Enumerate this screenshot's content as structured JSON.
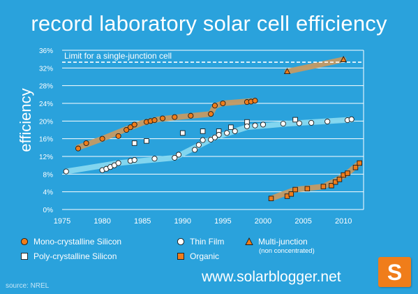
{
  "title": "record laboratory solar cell efficiency",
  "site": "www.solarblogger.net",
  "source": "source: NREL",
  "logo_letter": "S",
  "chart_data": {
    "type": "scatter",
    "ylabel": "efficiency",
    "xlabel": "",
    "xlim": [
      1975,
      2012.5
    ],
    "ylim": [
      0,
      36
    ],
    "x_ticks": [
      1975,
      1980,
      1985,
      1990,
      1995,
      2000,
      2005,
      2010
    ],
    "y_ticks": [
      0,
      4,
      8,
      12,
      16,
      20,
      24,
      28,
      32,
      36
    ],
    "y_tick_suffix": "%",
    "grid": true,
    "legend_placement": "bottom",
    "limit_line": {
      "value": 33.3,
      "label": "Limit for a single-junction cell"
    },
    "series": [
      {
        "name": "Mono-crystalline Silicon",
        "marker": "circle",
        "color": "#f07d1a",
        "band_color": "#c49a63",
        "points": [
          [
            1977,
            13.8
          ],
          [
            1978,
            15
          ],
          [
            1980,
            16
          ],
          [
            1982,
            16.6
          ],
          [
            1983,
            18
          ],
          [
            1983.5,
            18.6
          ],
          [
            1984,
            19.2
          ],
          [
            1985.5,
            19.8
          ],
          [
            1986,
            20
          ],
          [
            1986.5,
            20.2
          ],
          [
            1987.5,
            20.6
          ],
          [
            1989,
            20.9
          ],
          [
            1991,
            21.2
          ],
          [
            1993.5,
            21.6
          ],
          [
            1994,
            23.5
          ],
          [
            1995,
            24
          ],
          [
            1998,
            24.3
          ],
          [
            1998.5,
            24.4
          ],
          [
            1999,
            24.6
          ]
        ],
        "band": [
          [
            1977,
            14
          ],
          [
            1980,
            16
          ],
          [
            1983,
            18.2
          ],
          [
            1985,
            19.6
          ],
          [
            1987,
            20.4
          ],
          [
            1990,
            21
          ],
          [
            1993.5,
            21.6
          ],
          [
            1994,
            23.4
          ],
          [
            1995,
            24
          ],
          [
            1999,
            24.6
          ]
        ]
      },
      {
        "name": "Poly-crystalline Silicon",
        "marker": "square",
        "color": "#ffffff",
        "points": [
          [
            1984,
            15
          ],
          [
            1985.5,
            15.5
          ],
          [
            1990,
            17.3
          ],
          [
            1992.5,
            17.7
          ],
          [
            1994.5,
            17.7
          ],
          [
            1996,
            18.6
          ],
          [
            1998,
            19.8
          ],
          [
            2004,
            20.3
          ]
        ]
      },
      {
        "name": "Thin Film",
        "marker": "circle",
        "color": "#ffffff",
        "band_color": "#86d8ef",
        "points": [
          [
            1975.5,
            8.6
          ],
          [
            1980,
            8.9
          ],
          [
            1980.5,
            9.2
          ],
          [
            1981,
            9.6
          ],
          [
            1981.5,
            10
          ],
          [
            1982,
            10.5
          ],
          [
            1983.5,
            11
          ],
          [
            1984,
            11.2
          ],
          [
            1986.5,
            11.5
          ],
          [
            1989,
            11.7
          ],
          [
            1989.5,
            12.4
          ],
          [
            1991.5,
            13.5
          ],
          [
            1992,
            14.6
          ],
          [
            1992.5,
            15.7
          ],
          [
            1993.5,
            15.8
          ],
          [
            1994,
            16.3
          ],
          [
            1994.5,
            16.9
          ],
          [
            1995.5,
            17.3
          ],
          [
            1996.5,
            17.7
          ],
          [
            1998,
            18.8
          ],
          [
            1999,
            19
          ],
          [
            2000,
            19.2
          ],
          [
            2002.5,
            19.4
          ],
          [
            2004.5,
            19.5
          ],
          [
            2006,
            19.6
          ],
          [
            2008,
            19.9
          ],
          [
            2010.5,
            20.2
          ],
          [
            2011,
            20.4
          ]
        ],
        "band": [
          [
            1975.5,
            8.6
          ],
          [
            1982,
            10.5
          ],
          [
            1989,
            11.7
          ],
          [
            1994,
            16.3
          ],
          [
            1998,
            18.6
          ],
          [
            2003,
            19.4
          ],
          [
            2011,
            20.3
          ]
        ]
      },
      {
        "name": "Organic",
        "marker": "square",
        "color": "#f07d1a",
        "band_color": "#c49a63",
        "points": [
          [
            2001,
            2.5
          ],
          [
            2003,
            3
          ],
          [
            2003.5,
            3.5
          ],
          [
            2004,
            4.5
          ],
          [
            2005.5,
            4.7
          ],
          [
            2007.5,
            5.2
          ],
          [
            2008.5,
            5.4
          ],
          [
            2009,
            6.2
          ],
          [
            2009.5,
            6.8
          ],
          [
            2010,
            7.8
          ],
          [
            2010.5,
            8.2
          ],
          [
            2011.5,
            9.5
          ],
          [
            2012,
            10.5
          ]
        ],
        "band": [
          [
            2001,
            2.5
          ],
          [
            2004,
            4.5
          ],
          [
            2007.5,
            5.2
          ],
          [
            2009,
            6.5
          ],
          [
            2010.5,
            8.2
          ],
          [
            2012,
            10.5
          ]
        ]
      },
      {
        "name": "Multi-junction",
        "subtitle": "(non concentrated)",
        "marker": "triangle",
        "color": "#f07d1a",
        "band_color": "#c49a63",
        "points": [
          [
            2003,
            31.2
          ],
          [
            2010,
            33.9
          ]
        ],
        "band": [
          [
            2003,
            31.2
          ],
          [
            2010,
            33.9
          ]
        ]
      }
    ]
  }
}
